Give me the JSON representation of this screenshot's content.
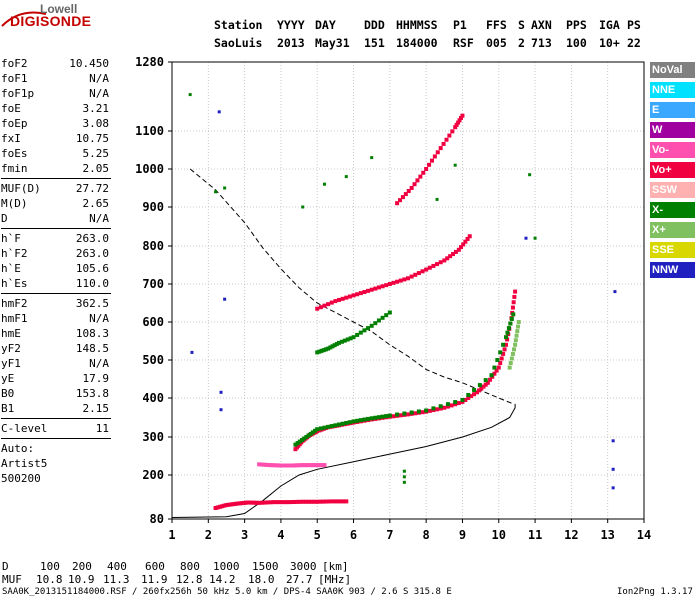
{
  "logo": {
    "top": "Lowell",
    "bottom": "DIGISONDE"
  },
  "header": {
    "line1_label": "Station",
    "line2_station": "SaoLuis",
    "columns": [
      {
        "label": "YYYY",
        "value": "2013"
      },
      {
        "label": "DAY",
        "value": "May31"
      },
      {
        "label": "DDD",
        "value": "151"
      },
      {
        "label": "HHMMSS",
        "value": "184000"
      },
      {
        "label": "P1",
        "value": "RSF"
      },
      {
        "label": "FFS",
        "value": "005"
      },
      {
        "label": "S",
        "value": "2"
      },
      {
        "label": "AXN",
        "value": "713"
      },
      {
        "label": "PPS",
        "value": "100"
      },
      {
        "label": "IGA",
        "value": "10+"
      },
      {
        "label": "PS",
        "value": "22"
      }
    ]
  },
  "params": {
    "group1": [
      {
        "label": "foF2",
        "value": "10.450"
      },
      {
        "label": "foF1",
        "value": "N/A"
      },
      {
        "label": "foF1p",
        "value": "N/A"
      },
      {
        "label": "foE",
        "value": "3.21"
      },
      {
        "label": "foEp",
        "value": "3.08"
      },
      {
        "label": "fxI",
        "value": "10.75"
      },
      {
        "label": "foEs",
        "value": "5.25"
      },
      {
        "label": "fmin",
        "value": "2.05"
      }
    ],
    "group2": [
      {
        "label": "MUF(D)",
        "value": "27.72"
      },
      {
        "label": "M(D)",
        "value": "2.65"
      },
      {
        "label": "D",
        "value": "N/A"
      }
    ],
    "group3": [
      {
        "label": "h`F",
        "value": "263.0"
      },
      {
        "label": "h`F2",
        "value": "263.0"
      },
      {
        "label": "h`E",
        "value": "105.6"
      },
      {
        "label": "h`Es",
        "value": "110.0"
      }
    ],
    "group4": [
      {
        "label": "hmF2",
        "value": "362.5"
      },
      {
        "label": "hmF1",
        "value": "N/A"
      },
      {
        "label": "hmE",
        "value": "108.3"
      },
      {
        "label": "yF2",
        "value": "148.5"
      },
      {
        "label": "yF1",
        "value": "N/A"
      },
      {
        "label": "yE",
        "value": "17.9"
      },
      {
        "label": "B0",
        "value": "153.8"
      },
      {
        "label": "B1",
        "value": "2.15"
      }
    ],
    "group5": [
      {
        "label": "C-level",
        "value": "11"
      }
    ],
    "auto_lines": [
      "Auto:",
      "Artist5",
      "500200"
    ]
  },
  "legend": [
    {
      "label": "NoVal",
      "bg": "#808080",
      "fg": "#ffffff"
    },
    {
      "label": "NNE",
      "bg": "#00e0ff",
      "fg": "#ffffff"
    },
    {
      "label": "E",
      "bg": "#3aa8ff",
      "fg": "#ffffff"
    },
    {
      "label": "W",
      "bg": "#a000a0",
      "fg": "#ffffff"
    },
    {
      "label": "Vo-",
      "bg": "#ff50b0",
      "fg": "#ffffff"
    },
    {
      "label": "Vo+",
      "bg": "#f00040",
      "fg": "#ffffff"
    },
    {
      "label": "SSW",
      "bg": "#ffb0b0",
      "fg": "#ffffff"
    },
    {
      "label": "X-",
      "bg": "#008000",
      "fg": "#ffffff"
    },
    {
      "label": "X+",
      "bg": "#80c060",
      "fg": "#ffffff"
    },
    {
      "label": "SSE",
      "bg": "#d8d800",
      "fg": "#ffffff"
    },
    {
      "label": "NNW",
      "bg": "#2020c0",
      "fg": "#ffffff"
    }
  ],
  "bottom": {
    "d_label": "D",
    "d_values": [
      "100",
      "200",
      "400",
      "600",
      "800",
      "1000",
      "1500",
      "3000",
      "[km]"
    ],
    "muf_label": "MUF",
    "muf_values": [
      "10.8",
      "10.9",
      "11.3",
      "11.9",
      "12.8",
      "14.2",
      "18.0",
      "27.7",
      "[MHz]"
    ]
  },
  "footer": {
    "left": "SAA0K_2013151184000.RSF / 260fx256h 50 kHz 5.0 km / DPS-4 SAA0K 903 / 2.6 S 315.8 E",
    "right": "Ion2Png 1.3.17"
  },
  "chart_data": {
    "type": "scatter",
    "title": "",
    "xlabel": "",
    "ylabel": "",
    "xlim": [
      1,
      14
    ],
    "ylim": [
      80,
      1280
    ],
    "x_ticks": [
      1,
      2,
      3,
      4,
      5,
      6,
      7,
      8,
      9,
      10,
      11,
      12,
      13,
      14
    ],
    "y_ticks": [
      80,
      200,
      300,
      400,
      500,
      600,
      700,
      800,
      900,
      1000,
      1100,
      1280
    ],
    "grid": true,
    "series": [
      {
        "name": "Vo+",
        "color": "#f00040",
        "points": [
          [
            4.4,
            268
          ],
          [
            4.6,
            290
          ],
          [
            4.8,
            305
          ],
          [
            5.0,
            315
          ],
          [
            5.3,
            325
          ],
          [
            5.6,
            330
          ],
          [
            6.0,
            337
          ],
          [
            6.5,
            345
          ],
          [
            7.0,
            352
          ],
          [
            7.5,
            358
          ],
          [
            8.0,
            365
          ],
          [
            8.5,
            375
          ],
          [
            9.0,
            390
          ],
          [
            9.4,
            415
          ],
          [
            9.7,
            440
          ],
          [
            10.0,
            480
          ],
          [
            10.2,
            540
          ],
          [
            10.35,
            610
          ],
          [
            10.45,
            680
          ]
        ]
      },
      {
        "name": "X-",
        "color": "#008000",
        "points": [
          [
            4.4,
            280
          ],
          [
            4.7,
            300
          ],
          [
            5.0,
            320
          ],
          [
            5.5,
            330
          ],
          [
            6.0,
            340
          ],
          [
            6.5,
            348
          ],
          [
            7.0,
            355
          ],
          [
            8.0,
            368
          ],
          [
            9.0,
            395
          ],
          [
            9.8,
            460
          ],
          [
            10.2,
            560
          ],
          [
            10.4,
            620
          ]
        ]
      },
      {
        "name": "X+",
        "color": "#80c060",
        "points": [
          [
            10.3,
            480
          ],
          [
            10.45,
            540
          ],
          [
            10.55,
            600
          ]
        ]
      },
      {
        "name": "Vo+ 2nd",
        "color": "#f00040",
        "points": [
          [
            5.0,
            635
          ],
          [
            5.5,
            655
          ],
          [
            6.0,
            670
          ],
          [
            6.5,
            685
          ],
          [
            7.0,
            700
          ],
          [
            7.5,
            715
          ],
          [
            8.0,
            738
          ],
          [
            8.5,
            762
          ],
          [
            8.9,
            790
          ],
          [
            9.2,
            825
          ]
        ]
      },
      {
        "name": "Vo+ 3rd",
        "color": "#f00040",
        "points": [
          [
            7.2,
            910
          ],
          [
            7.6,
            950
          ],
          [
            8.0,
            1000
          ],
          [
            8.4,
            1055
          ],
          [
            8.8,
            1110
          ],
          [
            9.0,
            1140
          ]
        ]
      },
      {
        "name": "X- 2nd",
        "color": "#008000",
        "points": [
          [
            5.0,
            520
          ],
          [
            5.3,
            530
          ],
          [
            5.6,
            545
          ],
          [
            6.0,
            560
          ],
          [
            6.5,
            590
          ],
          [
            7.0,
            625
          ]
        ]
      },
      {
        "name": "Vo- Es",
        "color": "#ff50b0",
        "points": [
          [
            3.4,
            228
          ],
          [
            3.7,
            226
          ],
          [
            4.0,
            225
          ],
          [
            4.3,
            225
          ],
          [
            4.6,
            226
          ],
          [
            4.9,
            226
          ],
          [
            5.2,
            226
          ]
        ]
      },
      {
        "name": "Vo+ E",
        "color": "#f00040",
        "points": [
          [
            2.2,
            110
          ],
          [
            2.5,
            118
          ],
          [
            2.8,
            122
          ],
          [
            3.1,
            125
          ],
          [
            3.4,
            124
          ],
          [
            3.8,
            126
          ],
          [
            4.2,
            126
          ],
          [
            4.6,
            127
          ],
          [
            5.0,
            127
          ],
          [
            5.4,
            128
          ],
          [
            5.8,
            128
          ]
        ]
      },
      {
        "name": "noise",
        "color": "#008000",
        "points": [
          [
            7.4,
            210
          ],
          [
            7.4,
            195
          ],
          [
            7.4,
            180
          ],
          [
            6.5,
            1030
          ],
          [
            5.8,
            980
          ],
          [
            4.6,
            900
          ],
          [
            5.2,
            960
          ],
          [
            8.3,
            920
          ],
          [
            8.8,
            1010
          ],
          [
            1.5,
            1195
          ],
          [
            2.2,
            940
          ],
          [
            2.45,
            950
          ],
          [
            11.0,
            820
          ],
          [
            10.85,
            985
          ]
        ]
      },
      {
        "name": "NNW noise",
        "color": "#2020c0",
        "points": [
          [
            2.3,
            1150
          ],
          [
            2.35,
            370
          ],
          [
            2.35,
            415
          ],
          [
            2.45,
            660
          ],
          [
            1.55,
            520
          ],
          [
            13.2,
            680
          ],
          [
            13.15,
            290
          ],
          [
            13.15,
            215
          ],
          [
            13.15,
            165
          ],
          [
            10.75,
            820
          ]
        ]
      }
    ],
    "profile_solid": [
      [
        1,
        84
      ],
      [
        2.5,
        86
      ],
      [
        3.0,
        95
      ],
      [
        3.5,
        130
      ],
      [
        4.0,
        170
      ],
      [
        4.5,
        200
      ],
      [
        5.0,
        215
      ],
      [
        6.0,
        235
      ],
      [
        7.0,
        255
      ],
      [
        8.0,
        275
      ],
      [
        9.0,
        300
      ],
      [
        9.8,
        325
      ],
      [
        10.3,
        350
      ],
      [
        10.45,
        375
      ],
      [
        10.45,
        385
      ]
    ],
    "profile_dashed": [
      [
        1.5,
        1000
      ],
      [
        2.2,
        945
      ],
      [
        3.0,
        860
      ],
      [
        3.5,
        795
      ],
      [
        4.0,
        740
      ],
      [
        4.5,
        690
      ],
      [
        5.0,
        650
      ],
      [
        5.5,
        625
      ],
      [
        6.0,
        600
      ],
      [
        6.5,
        575
      ],
      [
        7.0,
        540
      ],
      [
        7.5,
        510
      ],
      [
        8.0,
        475
      ],
      [
        8.5,
        455
      ],
      [
        9.0,
        440
      ],
      [
        9.5,
        420
      ],
      [
        10.0,
        400
      ],
      [
        10.4,
        385
      ]
    ]
  }
}
